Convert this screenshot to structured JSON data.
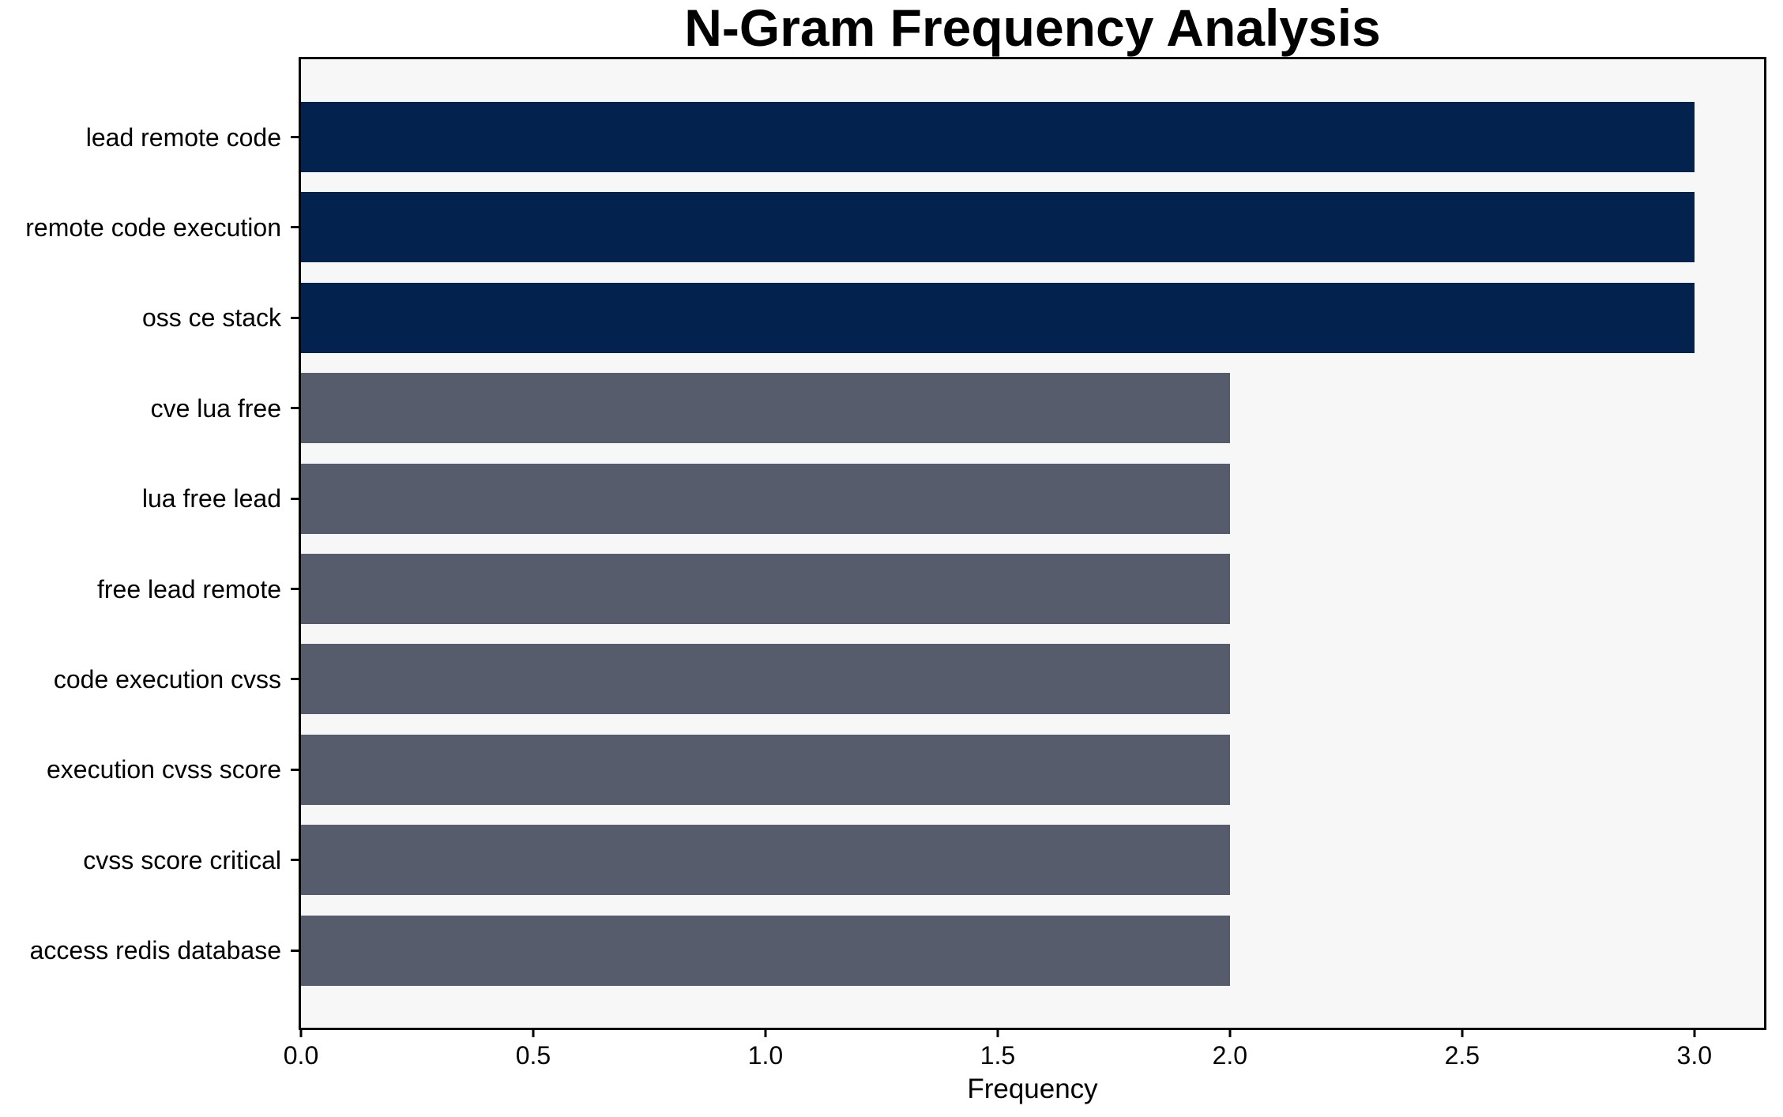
{
  "chart_data": {
    "type": "bar",
    "orientation": "horizontal",
    "title": "N-Gram Frequency Analysis",
    "xlabel": "Frequency",
    "ylabel": "",
    "categories": [
      "lead remote code",
      "remote code execution",
      "oss ce stack",
      "cve lua free",
      "lua free lead",
      "free lead remote",
      "code execution cvss",
      "execution cvss score",
      "cvss score critical",
      "access redis database"
    ],
    "values": [
      3,
      3,
      3,
      2,
      2,
      2,
      2,
      2,
      2,
      2
    ],
    "bar_colors": [
      "#03234e",
      "#03234e",
      "#03234e",
      "#565c6b",
      "#565c6b",
      "#565c6b",
      "#565c6b",
      "#565c6b",
      "#565c6b",
      "#565c6b"
    ],
    "xlim": [
      0,
      3.15
    ],
    "xtick_values": [
      0,
      0.5,
      1.0,
      1.5,
      2.0,
      2.5,
      3.0
    ],
    "xtick_labels": [
      "0.0",
      "0.5",
      "1.0",
      "1.5",
      "2.0",
      "2.5",
      "3.0"
    ],
    "grid": false,
    "legend": null,
    "plot_background": "#f7f7f7",
    "figure_background": "#ffffff",
    "spine_color": "#000000",
    "highlight_color": "#03234e",
    "base_color": "#565c6b"
  }
}
